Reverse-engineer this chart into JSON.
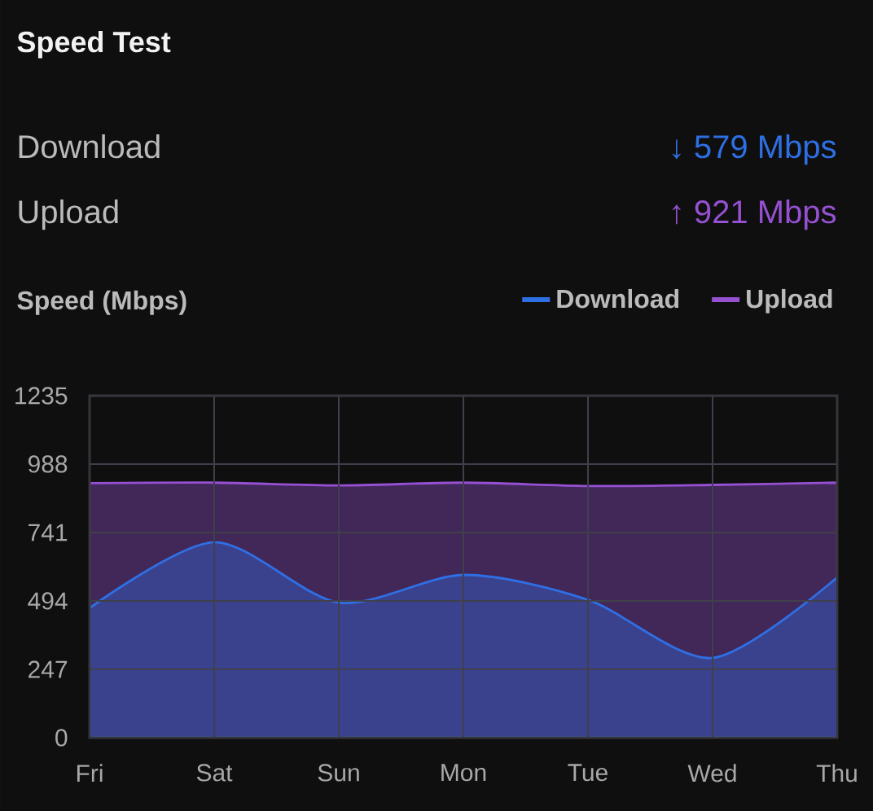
{
  "chart_data": {
    "type": "area",
    "title": "Speed Test",
    "ylabel": "Speed (Mbps)",
    "annotations": [
      "Download",
      "↓ 579 Mbps",
      "Upload",
      "↑ 921 Mbps"
    ],
    "categories": [
      "Fri",
      "Sat",
      "Sun",
      "Mon",
      "Tue",
      "Wed",
      "Thu"
    ],
    "series": [
      {
        "name": "Download",
        "color": "#2f6fe4",
        "values": [
          468,
          706,
          488,
          588,
          498,
          288,
          579
        ]
      },
      {
        "name": "Upload",
        "color": "#9650d2",
        "values": [
          919,
          921,
          911,
          921,
          909,
          913,
          921
        ]
      }
    ],
    "ylim": [
      0,
      1235
    ],
    "yticks": [
      0,
      247,
      494,
      741,
      988,
      1235
    ],
    "grid": true,
    "legend": "top right"
  }
}
